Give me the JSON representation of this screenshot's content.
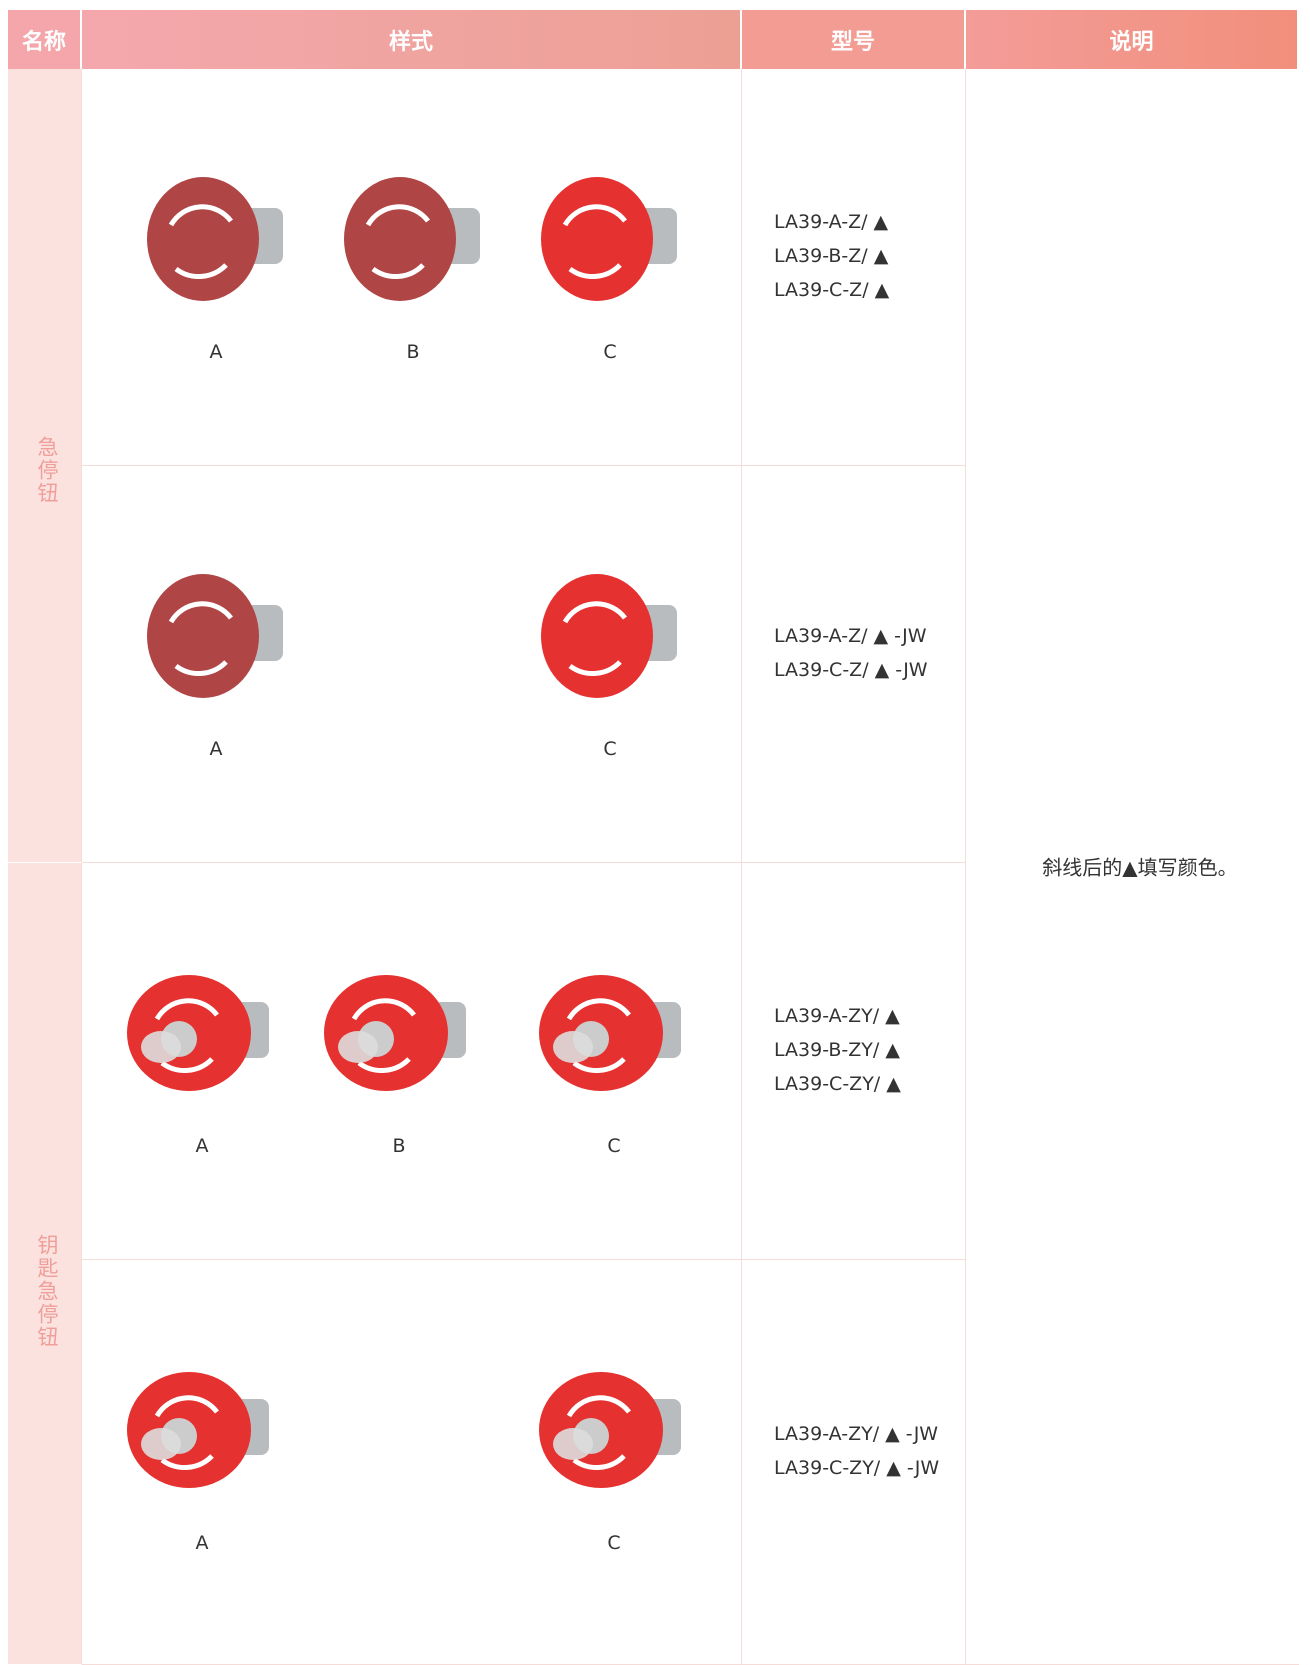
{
  "header": [
    "名称",
    "样式",
    "型号",
    "说明"
  ],
  "groups": [
    {
      "name": "急停钮",
      "rows": [
        {
          "items": [
            "A",
            "B",
            "C"
          ],
          "models": [
            "LA39-A-Z/ ▲",
            "LA39-B-Z/ ▲",
            "LA39-C-Z/ ▲"
          ]
        },
        {
          "items": [
            "A",
            null,
            "C"
          ],
          "models": [
            "LA39-A-Z/ ▲ -JW",
            "LA39-C-Z/ ▲ -JW"
          ]
        }
      ]
    },
    {
      "name": "钥匙急停钮",
      "rows": [
        {
          "items": [
            "A",
            "B",
            "C"
          ],
          "models": [
            "LA39-A-ZY/ ▲",
            "LA39-B-ZY/ ▲",
            "LA39-C-ZY/ ▲"
          ]
        },
        {
          "items": [
            "A",
            null,
            "C"
          ],
          "models": [
            "LA39-A-ZY/ ▲ -JW",
            "LA39-C-ZY/ ▲ -JW"
          ]
        }
      ]
    }
  ],
  "note": "斜线后的▲填写颜色。"
}
